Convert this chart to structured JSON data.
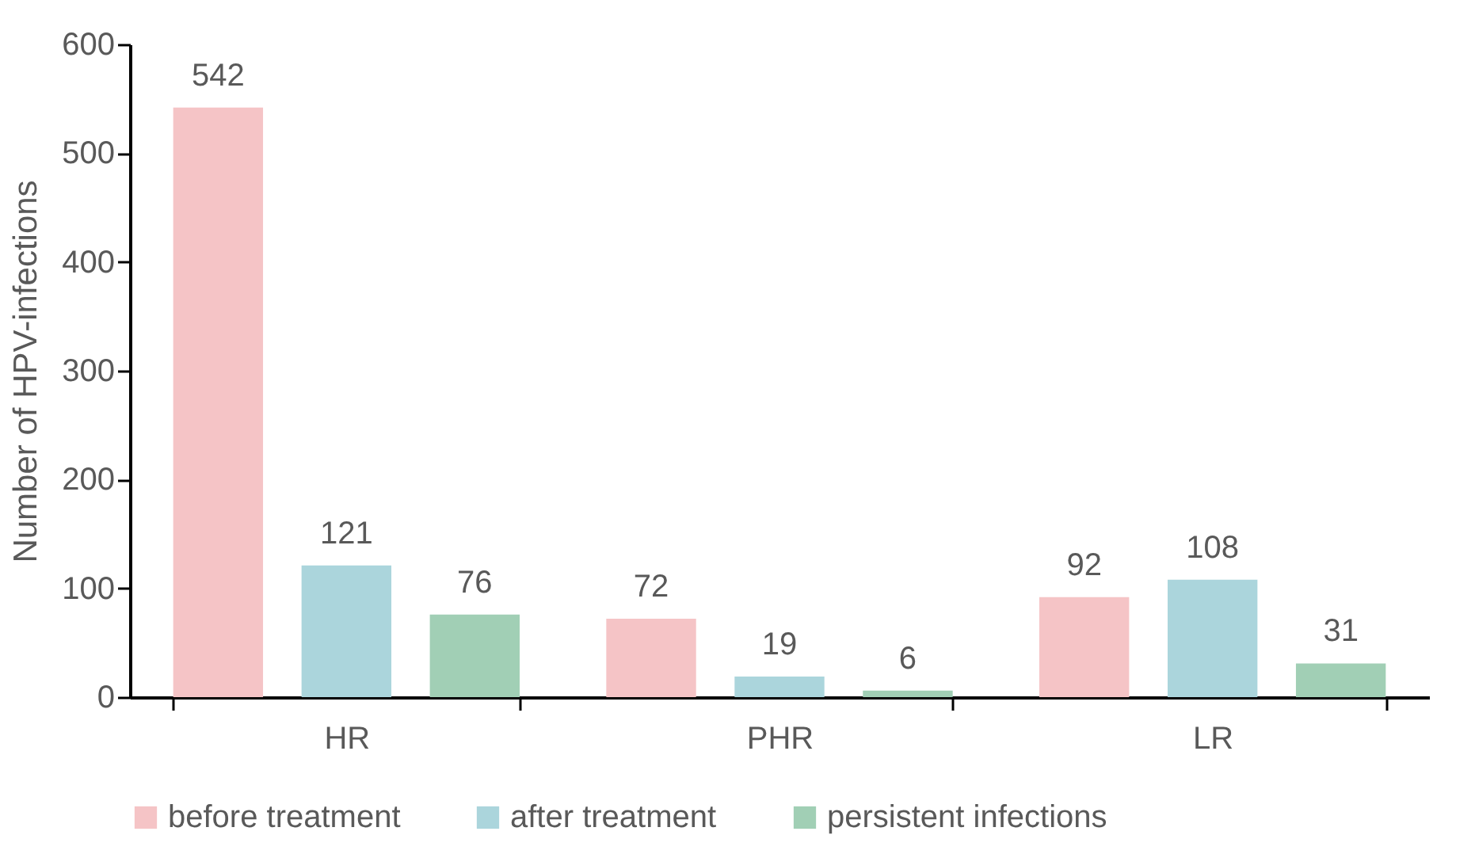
{
  "chart_data": {
    "type": "bar",
    "ylabel": "Number of HPV-infections",
    "categories": [
      "HR",
      "PHR",
      "LR"
    ],
    "series": [
      {
        "name": "before treatment",
        "color": "#f5c4c6",
        "values": [
          542,
          72,
          92
        ]
      },
      {
        "name": "after treatment",
        "color": "#abd5dc",
        "values": [
          121,
          19,
          108
        ]
      },
      {
        "name": "persistent infections",
        "color": "#a1cfb5",
        "values": [
          76,
          6,
          31
        ]
      }
    ],
    "ylim": [
      0,
      600
    ],
    "yticks": [
      0,
      100,
      200,
      300,
      400,
      500,
      600
    ],
    "grid": false,
    "legend": "bottom",
    "data_labels": true
  }
}
